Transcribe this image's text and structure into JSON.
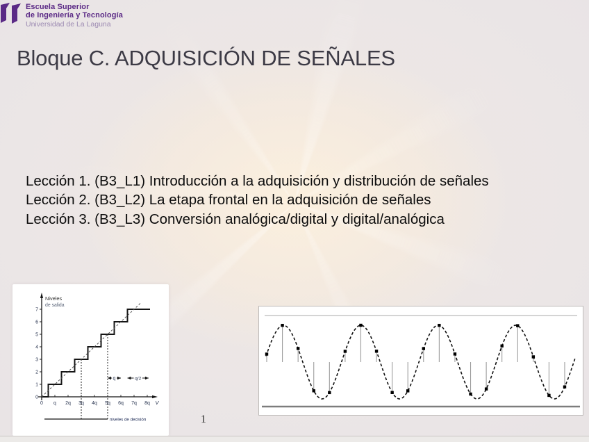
{
  "logo": {
    "line1": "Escuela Superior",
    "line2": "de Ingeniería y Tecnología",
    "line3": "Universidad de La Laguna"
  },
  "title": "Bloque C. ADQUISICIÓN DE SEÑALES",
  "lessons": [
    "Lección 1. (B3_L1) Introducción a la adquisición y distribución de señales",
    "Lección 2. (B3_L2) La etapa frontal en la adquisición de señales",
    "Lección 3. (B3_L3) Conversión analógica/digital y digital/analógica"
  ],
  "page_number": "1",
  "colors": {
    "brand_purple": "#5b2a86",
    "brand_purple_light": "#9c8ab2",
    "title_text": "#3c3a45",
    "body_text": "#0d0d0d",
    "chart_ink": "#151515",
    "chart_label_blue": "#26324e"
  },
  "chart_data": [
    {
      "type": "step",
      "ylabel": "Niveles de salida",
      "xlabel": "V",
      "x_tick_labels": [
        "0",
        "q",
        "2q",
        "3q",
        "4q",
        "5q",
        "6q",
        "7q",
        "8q"
      ],
      "y_tick_labels": [
        "0",
        "1",
        "2",
        "3",
        "4",
        "5",
        "6",
        "7"
      ],
      "levels": [
        0,
        1,
        2,
        3,
        4,
        5,
        6,
        7
      ],
      "step_width": "q",
      "decision_levels": [
        3,
        5
      ],
      "annotations": {
        "step": "q",
        "half_step": "q/2",
        "decision": "niveles de decisión"
      },
      "diagonal_reference_line": true
    },
    {
      "type": "line",
      "subtype": "sampled-sine",
      "cycles": 4,
      "samples": 20,
      "amplitude": 1,
      "curve_style": "dashed",
      "has_sample_stems": true,
      "has_sample_dots": true,
      "bound_lines": [
        "top",
        "bottom"
      ]
    }
  ]
}
